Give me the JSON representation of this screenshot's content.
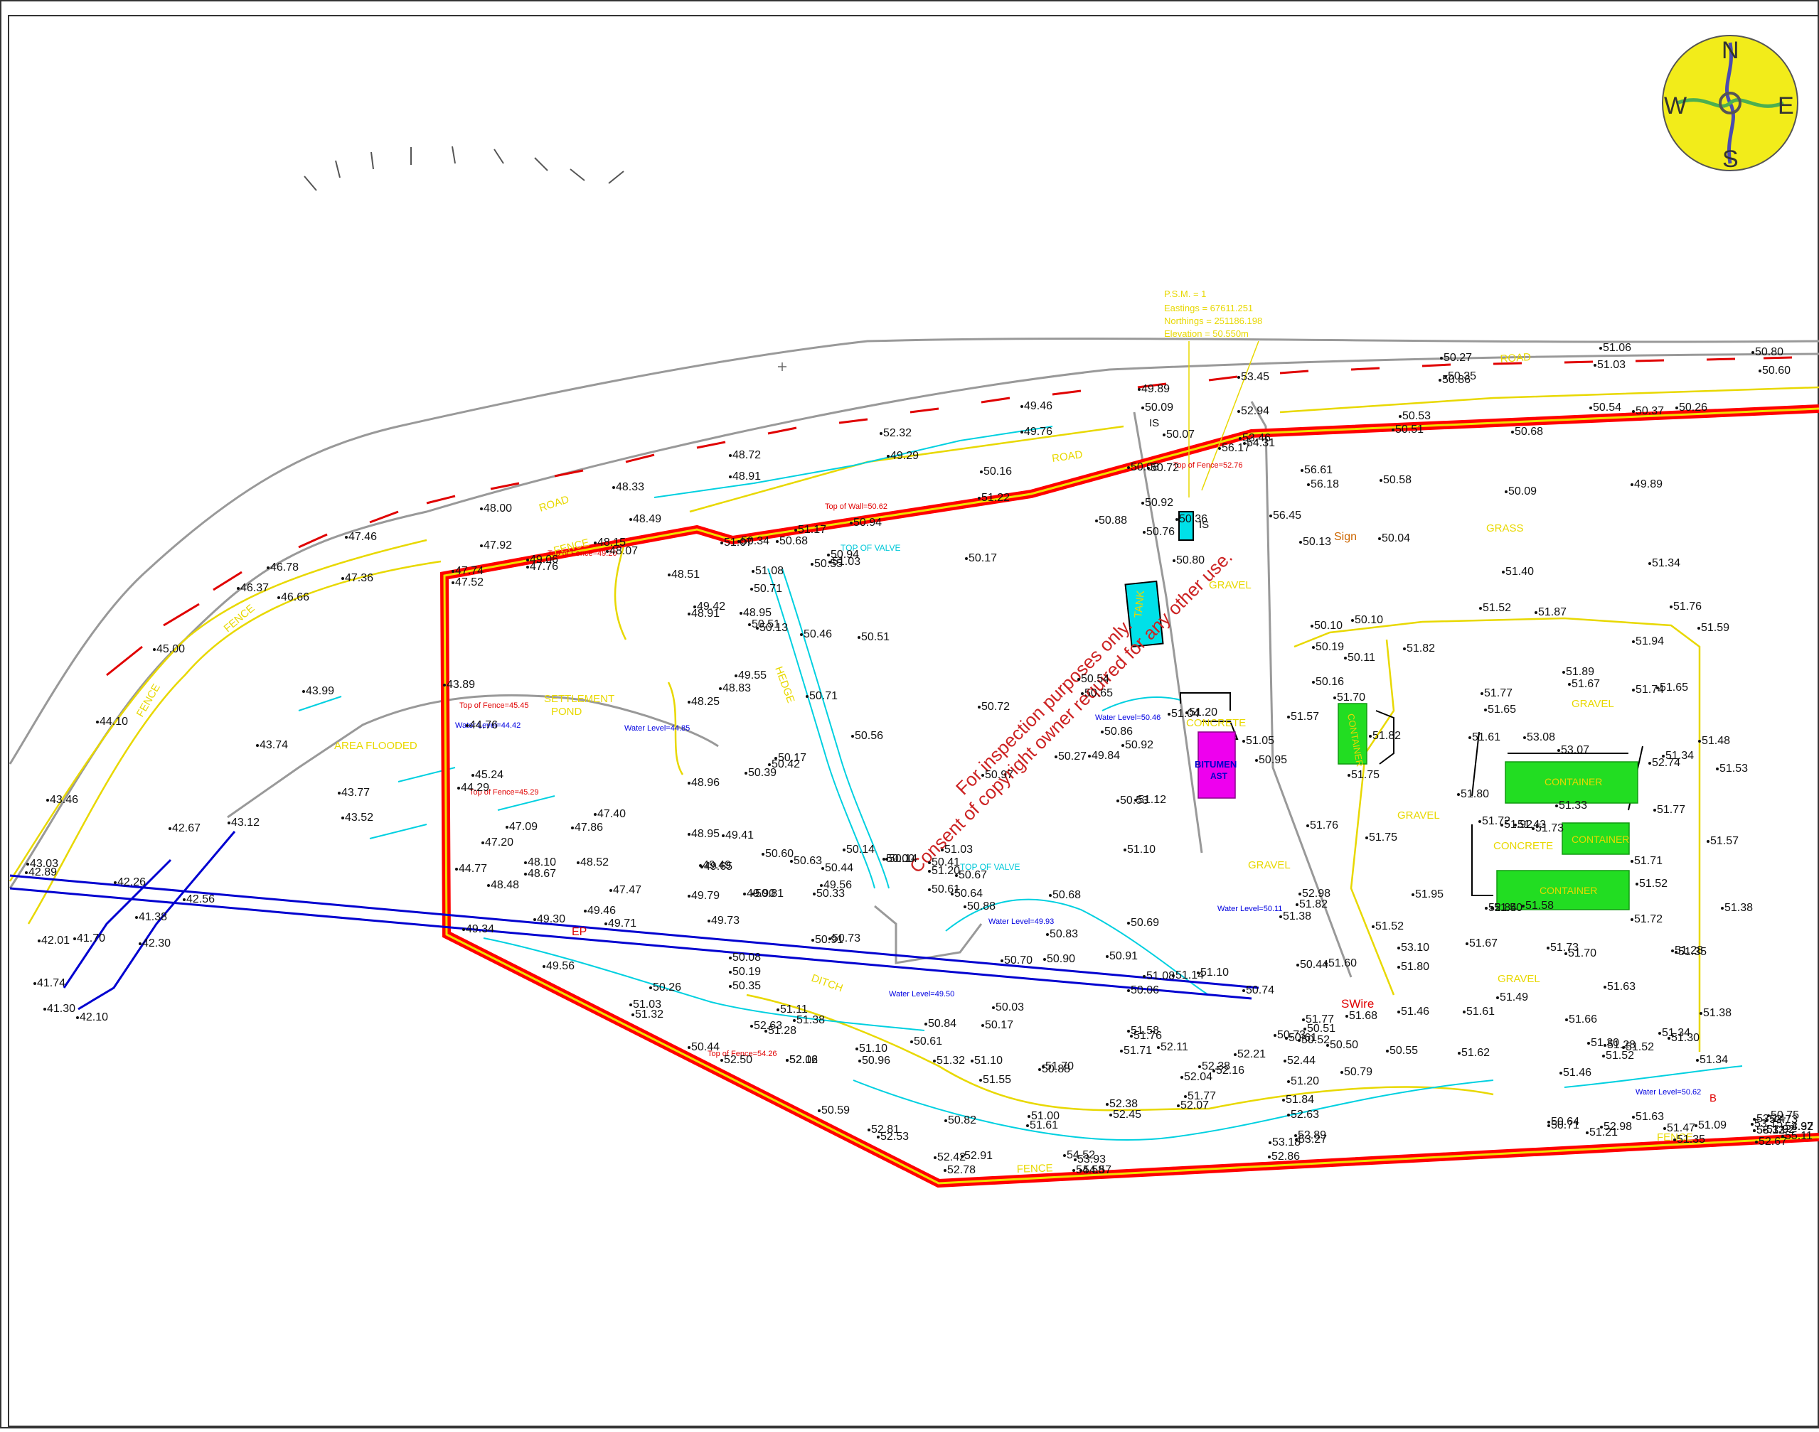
{
  "colors": {
    "boundary": "#ff0000",
    "boundary_core": "#e8d800",
    "road": "#999999",
    "road_dash": "#e00000",
    "kerb": "#e8d800",
    "ditch": "#00d0e0",
    "service": "#0000d0",
    "compass_bg": "#f2ec1a",
    "container": "#22dd22",
    "tank": "#00e0e8",
    "bitumen": "#ee00ee",
    "watermark": "#cc2222"
  },
  "compass": {
    "n": "N",
    "e": "E",
    "s": "S",
    "w": "W"
  },
  "watermark": {
    "line1": "For inspection purposes only.",
    "line2": "Consent of copyright owner required for any other use."
  },
  "tbm": {
    "line1": "P.S.M. = 1",
    "line2": "Eastings = 67611.251",
    "line3": "Northings = 251186.198",
    "line4": "Elevation = 50.550m"
  },
  "area_labels": {
    "road_1": "ROAD",
    "road_2": "ROAD",
    "road_3": "ROAD",
    "fence_1": "FENCE",
    "fence_2": "FENCE",
    "fence_3": "FENCE",
    "fence_4": "FENCE",
    "fence_5": "FENCE",
    "area_flooded": "AREA FLOODED",
    "settlement_pond": "SETTLEMENT",
    "settlement_pond_2": "POND",
    "gravel_1": "GRAVEL",
    "gravel_2": "GRAVEL",
    "gravel_3": "GRAVEL",
    "gravel_4": "GRAVEL",
    "gravel_5": "GRAVEL",
    "grass": "GRASS",
    "concrete_1": "CONCRETE",
    "concrete_2": "CONCRETE",
    "ditch": "DITCH",
    "hedge": "HEDGE"
  },
  "features": {
    "container_1": "CONTAINER",
    "container_2": "CONTAINER",
    "container_3": "CONTAINER",
    "container_4": "CONTAINER",
    "tank": "TANK",
    "bitumen_1": "BITUMEN",
    "bitumen_2": "AST",
    "sign": "Sign",
    "swire": "SWire",
    "ep": "EP",
    "is_1": "IS",
    "is_2": "IS",
    "top_valve_1": "TOP OF VALVE",
    "top_valve_2": "TOP OF VALVE",
    "b": "B"
  },
  "annotations": {
    "top_fence_1": "Top of Fence=45.45",
    "top_fence_2": "Top of Fence=45.29",
    "top_fence_3": "Top of Fence=49.20",
    "top_fence_4": "Top of Fence=54.26",
    "top_fence_5": "Top of Fence=52.76",
    "top_wall": "Top of Wall=50.62",
    "water_1": "Water Level=44.85",
    "water_2": "Water Level=44.42",
    "water_3": "Water Level=49.93",
    "water_4": "Water Level=49.50",
    "water_5": "Water Level=50.46",
    "water_6": "Water Level=50.11",
    "water_7": "Water Level=50.62"
  },
  "spot_levels": [
    "48.00",
    "47.46",
    "46.78",
    "46.37",
    "46.66",
    "47.36",
    "45.00",
    "44.10",
    "43.99",
    "43.74",
    "43.46",
    "43.77",
    "43.52",
    "42.67",
    "43.12",
    "42.26",
    "42.56",
    "41.38",
    "42.30",
    "42.01",
    "41.70",
    "41.74",
    "41.30",
    "42.10",
    "43.03",
    "42.89",
    "47.92",
    "47.74",
    "47.52",
    "43.89",
    "44.76",
    "45.24",
    "44.29",
    "47.09",
    "47.20",
    "44.77",
    "48.48",
    "48.10",
    "48.67",
    "47.86",
    "47.40",
    "48.52",
    "47.47",
    "49.46",
    "49.71",
    "49.30",
    "49.34",
    "49.56",
    "51.03",
    "51.32",
    "50.26",
    "48.33",
    "48.72",
    "48.91",
    "48.49",
    "49.06",
    "47.76",
    "48.15",
    "48.07",
    "48.51",
    "49.42",
    "48.91",
    "48.95",
    "49.55",
    "48.83",
    "48.25",
    "48.96",
    "48.95",
    "49.41",
    "49.49",
    "49.65",
    "49.79",
    "49.90",
    "49.73",
    "50.08",
    "50.19",
    "50.35",
    "51.11",
    "51.38",
    "50.44",
    "52.50",
    "52.63",
    "51.28",
    "52.12",
    "52.06",
    "52.32",
    "49.29",
    "49.46",
    "49.76",
    "49.89",
    "50.09",
    "50.07",
    "50.08",
    "50.72",
    "50.16",
    "51.22",
    "50.92",
    "50.88",
    "50.76",
    "50.80",
    "50.36",
    "50.55",
    "50.17",
    "51.08",
    "50.71",
    "50.51",
    "50.13",
    "50.46",
    "50.51",
    "50.71",
    "50.56",
    "50.72",
    "50.17",
    "50.42",
    "50.39",
    "50.54",
    "50.65",
    "50.97",
    "50.27",
    "49.84",
    "50.86",
    "50.92",
    "50.53",
    "51.12",
    "51.10",
    "51.07",
    "51.17",
    "51.03",
    "50.94",
    "50.94",
    "50.34",
    "50.68",
    "50.60",
    "50.63",
    "50.81",
    "50.33",
    "50.44",
    "49.56",
    "50.14",
    "50.00",
    "50.14",
    "51.03",
    "50.41",
    "51.20",
    "50.67",
    "50.61",
    "50.64",
    "50.88",
    "50.68",
    "50.83",
    "50.91",
    "50.73",
    "50.70",
    "50.90",
    "50.91",
    "50.69",
    "50.06",
    "50.03",
    "50.17",
    "50.84",
    "50.61",
    "51.32",
    "51.10",
    "50.96",
    "51.10",
    "50.88",
    "51.70",
    "51.55",
    "51.58",
    "51.76",
    "51.71",
    "52.11",
    "52.04",
    "52.16",
    "52.38",
    "52.21",
    "52.44",
    "51.20",
    "50.59",
    "50.82",
    "51.00",
    "51.61",
    "52.38",
    "52.45",
    "52.07",
    "51.77",
    "51.84",
    "52.63",
    "52.81",
    "52.53",
    "52.42",
    "52.78",
    "52.91",
    "53.93",
    "54.57",
    "54.52",
    "54.58",
    "53.18",
    "52.86",
    "52.89",
    "53.27",
    "53.45",
    "52.94",
    "53.46",
    "54.31",
    "56.17",
    "56.45",
    "56.61",
    "56.18",
    "50.13",
    "50.10",
    "50.10",
    "50.19",
    "50.11",
    "50.16",
    "51.70",
    "51.57",
    "51.75",
    "51.82",
    "51.76",
    "51.75",
    "52.98",
    "51.82",
    "51.38",
    "50.44",
    "51.60",
    "51.77",
    "50.51",
    "51.68",
    "50.61",
    "50.52",
    "50.50",
    "50.55",
    "50.79",
    "50.73",
    "50.74",
    "51.10",
    "51.08",
    "51.14",
    "51.20",
    "51.04",
    "51.05",
    "50.95",
    "51.06",
    "51.03",
    "50.80",
    "50.60",
    "50.27",
    "50.35",
    "50.86",
    "50.53",
    "50.51",
    "50.54",
    "50.37",
    "50.26",
    "50.68",
    "50.58",
    "50.09",
    "49.89",
    "50.04",
    "51.40",
    "51.34",
    "51.52",
    "51.76",
    "51.59",
    "51.82",
    "51.87",
    "51.94",
    "51.89",
    "51.67",
    "51.74",
    "51.65",
    "51.77",
    "51.65",
    "51.61",
    "53.08",
    "53.07",
    "52.74",
    "51.48",
    "51.53",
    "51.34",
    "51.33",
    "51.77",
    "51.73",
    "51.57",
    "51.71",
    "51.80",
    "51.72",
    "51.92",
    "51.95",
    "51.52",
    "51.43",
    "52.84",
    "51.50",
    "51.38",
    "51.58",
    "51.52",
    "51.72",
    "53.10",
    "51.67",
    "51.70",
    "51.80",
    "51.73",
    "51.49",
    "51.46",
    "51.61",
    "51.62",
    "51.66",
    "51.63",
    "51.28",
    "51.30",
    "51.52",
    "51.52",
    "51.46",
    "51.30",
    "51.34",
    "51.38",
    "51.34",
    "51.28",
    "51.35",
    "51.47",
    "51.09",
    "51.35",
    "50.71",
    "50.64",
    "51.21",
    "52.98",
    "51.63",
    "51.92",
    "50.75",
    "53.15",
    "53.14",
    "53.73",
    "53.13",
    "53.32",
    "52.67",
    "53.97",
    "54.32",
    "55.11",
    "54.64",
    "54.00",
    "51.73",
    "51.67",
    "51.58",
    "51.63",
    "51.68",
    "51.50",
    "51.50",
    "51.66",
    "51.47",
    "51.53",
    "51.52",
    "51.53"
  ]
}
